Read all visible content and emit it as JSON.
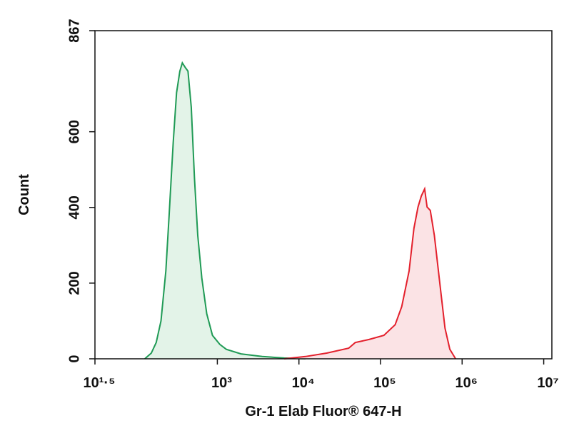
{
  "chart_data": {
    "type": "histogram",
    "x_label": "Gr-1 Elab Fluor® 647-H",
    "y_label": "Count",
    "xscale": "log",
    "xlim": [
      31.62,
      12590000
    ],
    "xticks": [
      {
        "value": 31.62,
        "label": "10¹·⁵"
      },
      {
        "value": 1000,
        "label": "10³"
      },
      {
        "value": 10000,
        "label": "10⁴"
      },
      {
        "value": 100000,
        "label": "10⁵"
      },
      {
        "value": 1000000,
        "label": "10⁶"
      },
      {
        "value": 10000000,
        "label": "10⁷"
      }
    ],
    "ylim": [
      0,
      867
    ],
    "yticks": [
      0,
      200,
      400,
      600,
      867
    ],
    "series": [
      {
        "color": "#1f9a55",
        "fill": "#e3f3e8",
        "x": [
          129,
          155,
          178,
          204,
          234,
          257,
          288,
          316,
          347,
          372,
          407,
          437,
          479,
          525,
          575,
          646,
          741,
          871,
          1072,
          1288,
          1950,
          3548,
          6607,
          12023
        ],
        "values": [
          0,
          15,
          43,
          100,
          232,
          383,
          571,
          703,
          760,
          782,
          769,
          760,
          665,
          477,
          326,
          213,
          119,
          62,
          38,
          25,
          13,
          6,
          2,
          0
        ]
      },
      {
        "color": "#e3202c",
        "fill": "#fbe3e5",
        "x": [
          6607,
          12023,
          21900,
          40700,
          49000,
          72400,
          110000,
          151000,
          182000,
          224000,
          257000,
          288000,
          316000,
          347000,
          372000,
          407000,
          457000,
          537000,
          617000,
          708000,
          832000
        ],
        "values": [
          0,
          6,
          15,
          28,
          43,
          51,
          62,
          90,
          138,
          232,
          345,
          401,
          430,
          449,
          401,
          392,
          326,
          194,
          81,
          25,
          0
        ]
      }
    ]
  }
}
